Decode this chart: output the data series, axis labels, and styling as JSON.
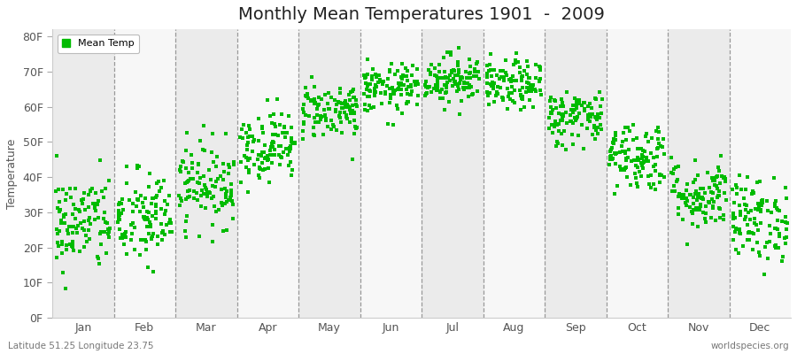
{
  "title": "Monthly Mean Temperatures 1901  -  2009",
  "ylabel": "Temperature",
  "months": [
    "Jan",
    "Feb",
    "Mar",
    "Apr",
    "May",
    "Jun",
    "Jul",
    "Aug",
    "Sep",
    "Oct",
    "Nov",
    "Dec"
  ],
  "yticks": [
    0,
    10,
    20,
    30,
    40,
    50,
    60,
    70,
    80
  ],
  "ytick_labels": [
    "0F",
    "10F",
    "20F",
    "30F",
    "40F",
    "50F",
    "60F",
    "70F",
    "80F"
  ],
  "ylim": [
    0,
    82
  ],
  "dot_color": "#00BB00",
  "dot_size": 5,
  "background_color": "#ffffff",
  "band_color_odd": "#ebebeb",
  "band_color_even": "#f7f7f7",
  "legend_label": "Mean Temp",
  "footer_left": "Latitude 51.25 Longitude 23.75",
  "footer_right": "worldspecies.org",
  "mean_temps_F": [
    27,
    28,
    38,
    49,
    59,
    65,
    68,
    66,
    57,
    46,
    35,
    28
  ],
  "std_temps_F": [
    7,
    7,
    6,
    5,
    4,
    3.5,
    3.5,
    3.5,
    4,
    5,
    5,
    6
  ],
  "n_years": 109,
  "seed": 42
}
